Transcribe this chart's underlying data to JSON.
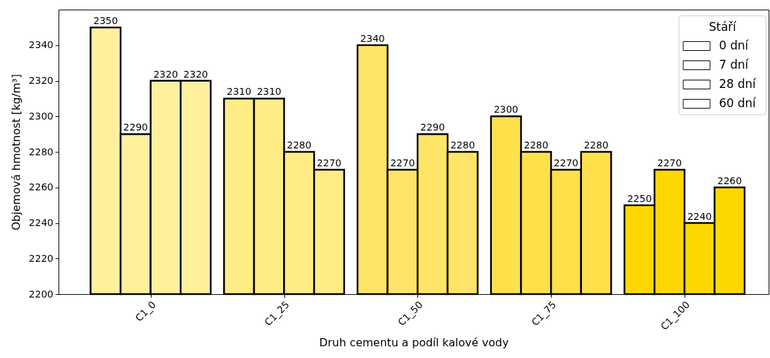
{
  "chart_data": {
    "type": "bar",
    "xlabel": "Druh cementu a podíl kalové vody",
    "ylabel": "Objemová hmotnost [kg/m³]",
    "legend_title": "Stáří",
    "categories": [
      "C1_0",
      "C1_25",
      "C1_50",
      "C1_75",
      "C1_100"
    ],
    "series": [
      {
        "name": "0 dní",
        "colors": [
          "#fff09e",
          "#ffec85",
          "#fee567",
          "#fee04a",
          "#ffd700"
        ],
        "values": [
          2350,
          2310,
          2340,
          2300,
          2250
        ]
      },
      {
        "name": "7 dní",
        "colors": [
          "#fff09e",
          "#ffec85",
          "#fee567",
          "#fee04a",
          "#ffd700"
        ],
        "values": [
          2290,
          2310,
          2270,
          2280,
          2270
        ]
      },
      {
        "name": "28 dní",
        "colors": [
          "#fff09e",
          "#ffec85",
          "#fee567",
          "#fee04a",
          "#ffd700"
        ],
        "values": [
          2320,
          2280,
          2290,
          2270,
          2240
        ]
      },
      {
        "name": "60 dní",
        "colors": [
          "#fff09e",
          "#ffec85",
          "#fee567",
          "#fee04a",
          "#ffd700"
        ],
        "values": [
          2320,
          2270,
          2280,
          2280,
          2260
        ]
      }
    ],
    "ylim": [
      2200,
      2360
    ],
    "yticks": [
      2200,
      2220,
      2240,
      2260,
      2280,
      2300,
      2320,
      2340
    ],
    "data_labels": true,
    "legend": "top right"
  }
}
